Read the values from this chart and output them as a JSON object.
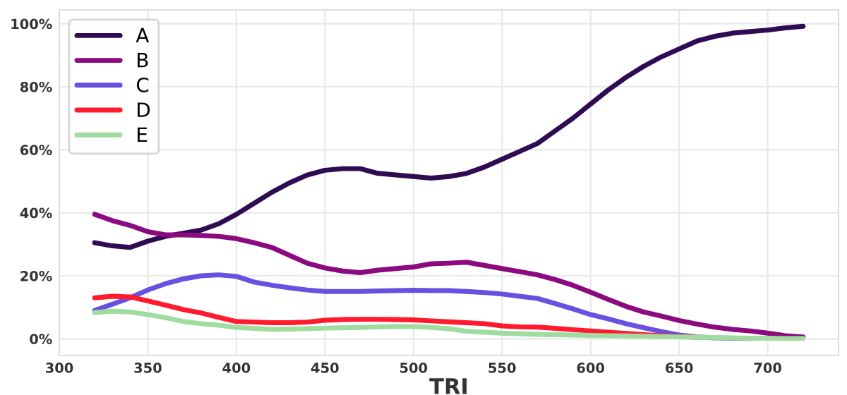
{
  "chart_data": {
    "type": "line",
    "xlabel": "TRI",
    "x": [
      320,
      330,
      340,
      350,
      360,
      370,
      380,
      390,
      400,
      410,
      420,
      430,
      440,
      450,
      460,
      470,
      480,
      490,
      500,
      510,
      520,
      530,
      540,
      550,
      560,
      570,
      580,
      590,
      600,
      610,
      620,
      630,
      640,
      650,
      660,
      670,
      680,
      690,
      700,
      710,
      720
    ],
    "series": [
      {
        "name": "A",
        "color": "#2e0b52",
        "values": [
          30.5,
          29.5,
          29,
          31,
          32.5,
          33.5,
          34.5,
          36.5,
          39.5,
          43,
          46.5,
          49.5,
          52,
          53.5,
          54,
          54,
          52.5,
          52,
          51.5,
          51,
          51.5,
          52.5,
          54.5,
          57,
          59.5,
          62,
          66,
          70,
          74.5,
          79,
          83,
          86.5,
          89.5,
          92,
          94.5,
          96,
          97,
          97.5,
          98,
          98.7,
          99.2
        ]
      },
      {
        "name": "B",
        "color": "#8c0a80",
        "values": [
          39.5,
          37.5,
          36,
          34,
          33,
          33,
          32.8,
          32.5,
          31.8,
          30.5,
          29,
          26.5,
          24,
          22.5,
          21.5,
          21,
          21.8,
          22.3,
          22.8,
          23.8,
          24,
          24.3,
          23.3,
          22.3,
          21.3,
          20.3,
          18.8,
          17,
          14.8,
          12.5,
          10.3,
          8.5,
          7.2,
          5.8,
          4.7,
          3.7,
          3,
          2.5,
          1.8,
          1,
          0.6
        ]
      },
      {
        "name": "C",
        "color": "#6a50e0",
        "values": [
          9,
          11,
          13,
          15.5,
          17.5,
          19,
          20,
          20.3,
          19.8,
          18,
          17,
          16.2,
          15.5,
          15,
          15,
          15,
          15.2,
          15.3,
          15.4,
          15.3,
          15.3,
          15,
          14.7,
          14.2,
          13.5,
          12.8,
          11.2,
          9.5,
          7.7,
          6.3,
          4.8,
          3.5,
          2.3,
          1.2,
          0.6,
          0.3,
          0.2,
          0.1,
          null,
          null,
          null
        ]
      },
      {
        "name": "D",
        "color": "#ff1a2e",
        "values": [
          13,
          13.5,
          13.3,
          12,
          10.7,
          9.3,
          8.2,
          6.8,
          5.5,
          5.3,
          5.1,
          5.1,
          5.3,
          5.9,
          6.1,
          6.2,
          6.2,
          6.1,
          6,
          5.7,
          5.4,
          5.1,
          4.8,
          4.1,
          3.8,
          3.7,
          3.3,
          2.9,
          2.5,
          2.1,
          1.7,
          1.3,
          1,
          0.7,
          0.5,
          null,
          null,
          null,
          null,
          null,
          null
        ]
      },
      {
        "name": "E",
        "color": "#a0dca0",
        "values": [
          8.3,
          8.8,
          8.5,
          7.7,
          6.7,
          5.5,
          4.8,
          4.3,
          3.6,
          3.3,
          3,
          3.1,
          3.2,
          3.4,
          3.5,
          3.6,
          3.8,
          3.9,
          3.9,
          3.6,
          3.2,
          2.4,
          2.1,
          1.8,
          1.6,
          1.4,
          1.3,
          1.2,
          1.1,
          1,
          0.9,
          0.8,
          0.7,
          0.6,
          0.5,
          0.4,
          0.3,
          0.2,
          0.2,
          0.1,
          0.1
        ]
      }
    ],
    "xlim": [
      300,
      740
    ],
    "xticks": [
      300,
      350,
      400,
      450,
      500,
      550,
      600,
      650,
      700
    ],
    "ylim": [
      -5.3,
      104.4
    ],
    "yticks": [
      {
        "value": 0,
        "label": "0%"
      },
      {
        "value": 20,
        "label": "20%"
      },
      {
        "value": 40,
        "label": "40%"
      },
      {
        "value": 60,
        "label": "60%"
      },
      {
        "value": 80,
        "label": "80%"
      },
      {
        "value": 100,
        "label": "100%"
      }
    ],
    "grid": true,
    "legend": "upper left",
    "line_style": "solid"
  }
}
